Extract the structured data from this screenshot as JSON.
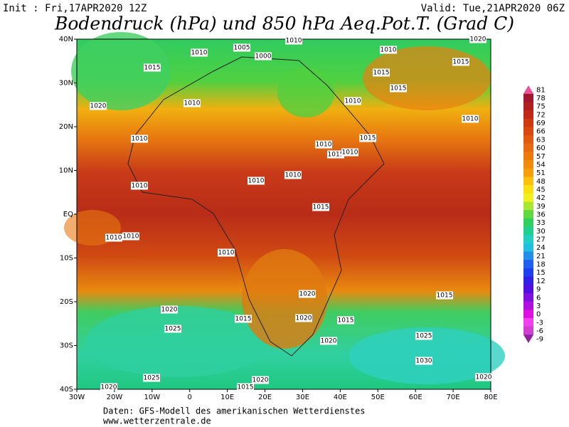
{
  "header": {
    "init": "Init : Fri,17APR2020 12Z",
    "valid": "Valid: Tue,21APR2020 06Z",
    "title": "Bodendruck (hPa) und 850 hPa Aeq.Pot.T. (Grad C)"
  },
  "map": {
    "lat_labels": [
      "40N",
      "30N",
      "20N",
      "10N",
      "EQ",
      "10S",
      "20S",
      "30S",
      "40S"
    ],
    "lon_labels": [
      "30W",
      "20W",
      "10W",
      "0",
      "10E",
      "20E",
      "30E",
      "40E",
      "50E",
      "60E",
      "70E",
      "80E"
    ],
    "isobar_labels": [
      1005,
      1010,
      1010,
      1000,
      1015,
      1010,
      1020,
      1015,
      1015,
      1015,
      1020,
      1010,
      1010,
      1010,
      1015,
      1010,
      1015,
      1010,
      1010,
      1010,
      1010,
      1010,
      1015,
      1010,
      1010,
      1010,
      1020,
      1015,
      1020,
      1015,
      1020,
      1015,
      1025,
      1020,
      1025,
      1030,
      1025,
      1020,
      1020,
      1015,
      1020
    ]
  },
  "colorbar": [
    {
      "value": 81,
      "color": "#f0509a"
    },
    {
      "value": 78,
      "color": "#a01830"
    },
    {
      "value": 75,
      "color": "#b02020"
    },
    {
      "value": 72,
      "color": "#c02818"
    },
    {
      "value": 69,
      "color": "#d03a10"
    },
    {
      "value": 66,
      "color": "#d84810"
    },
    {
      "value": 63,
      "color": "#e05a10"
    },
    {
      "value": 60,
      "color": "#e86a10"
    },
    {
      "value": 57,
      "color": "#ee7a0c"
    },
    {
      "value": 54,
      "color": "#f08c0a"
    },
    {
      "value": 51,
      "color": "#f5a00a"
    },
    {
      "value": 48,
      "color": "#fac00a"
    },
    {
      "value": 45,
      "color": "#fae010"
    },
    {
      "value": 42,
      "color": "#f0f020"
    },
    {
      "value": 39,
      "color": "#a8e830"
    },
    {
      "value": 36,
      "color": "#60d840"
    },
    {
      "value": 33,
      "color": "#30d060"
    },
    {
      "value": 30,
      "color": "#20d090"
    },
    {
      "value": 27,
      "color": "#20d0c0"
    },
    {
      "value": 24,
      "color": "#20c0e0"
    },
    {
      "value": 21,
      "color": "#2090e8"
    },
    {
      "value": 18,
      "color": "#2060f0"
    },
    {
      "value": 15,
      "color": "#2040f0"
    },
    {
      "value": 12,
      "color": "#3020e8"
    },
    {
      "value": 9,
      "color": "#5010e0"
    },
    {
      "value": 6,
      "color": "#8010e0"
    },
    {
      "value": 3,
      "color": "#b010e0"
    },
    {
      "value": 0,
      "color": "#e010e0"
    },
    {
      "value": -3,
      "color": "#f040f0"
    },
    {
      "value": -6,
      "color": "#d040d0"
    },
    {
      "value": -9,
      "color": "#9020a0"
    }
  ],
  "footer": {
    "source": "Daten: GFS-Modell des amerikanischen Wetterdienstes",
    "website": "www.wetterzentrale.de"
  }
}
